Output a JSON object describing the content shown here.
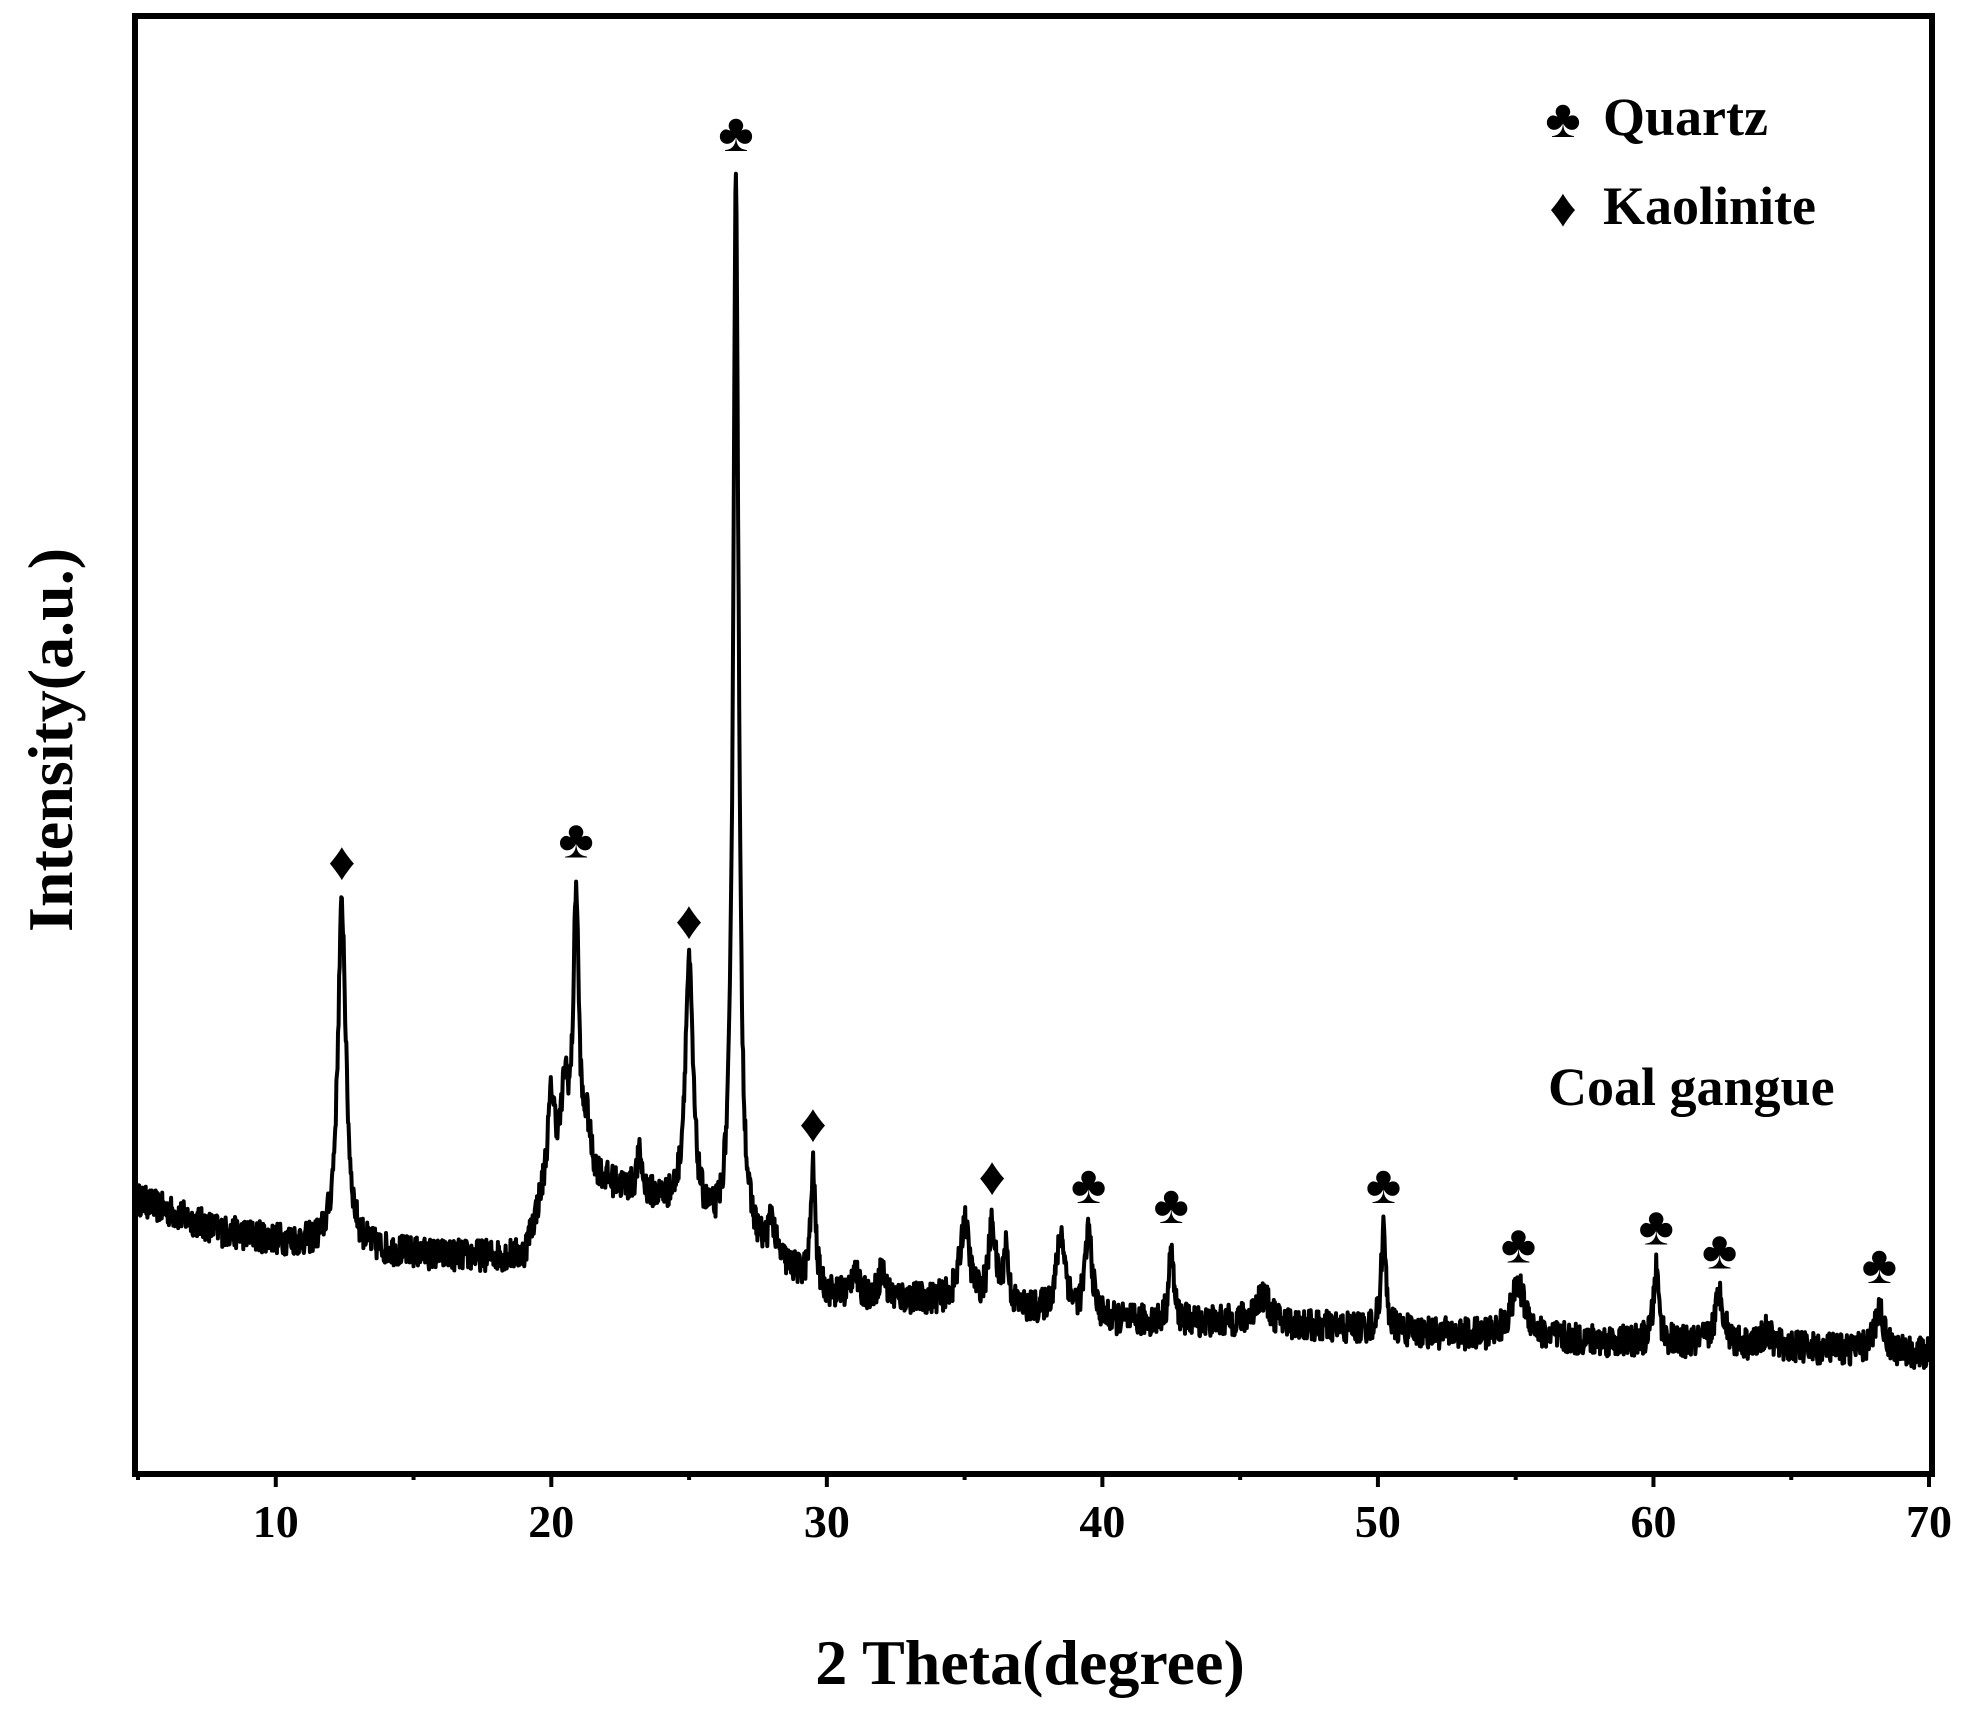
{
  "chart_data": {
    "type": "line",
    "title": "",
    "xlabel": "2 Theta(degree)",
    "ylabel": "Intensity(a.u.)",
    "xlim": [
      5,
      70
    ],
    "ylim": [
      0,
      100
    ],
    "grid": false,
    "y_ticks_labeled": false,
    "x_ticks": [
      10,
      20,
      30,
      40,
      50,
      60,
      70
    ],
    "legend": {
      "placement": "top-right",
      "entries": [
        {
          "symbol": "♣",
          "label": "Quartz"
        },
        {
          "symbol": "♦",
          "label": "Kaolinite"
        }
      ]
    },
    "series_annotation": "Coal gangue",
    "series": [
      {
        "name": "Coal gangue",
        "color": "#000000",
        "baseline": [
          [
            5,
            18.7
          ],
          [
            8,
            16.5
          ],
          [
            12,
            15.3
          ],
          [
            16,
            14.8
          ],
          [
            19,
            14.7
          ],
          [
            20,
            20.5
          ],
          [
            22,
            19.7
          ],
          [
            24,
            18.4
          ],
          [
            26,
            16.0
          ],
          [
            28,
            14.6
          ],
          [
            30,
            12.1
          ],
          [
            35,
            11.6
          ],
          [
            40,
            10.3
          ],
          [
            45,
            10.2
          ],
          [
            50,
            9.7
          ],
          [
            55,
            9.1
          ],
          [
            60,
            8.8
          ],
          [
            65,
            8.5
          ],
          [
            70,
            8.0
          ]
        ],
        "peaks": [
          [
            12.4,
            23.7,
            0.18
          ],
          [
            20.0,
            5.0,
            0.15
          ],
          [
            20.5,
            5.5,
            0.15
          ],
          [
            20.9,
            19.1,
            0.12
          ],
          [
            21.3,
            3.0,
            0.15
          ],
          [
            23.2,
            2.5,
            0.12
          ],
          [
            25.0,
            17.3,
            0.18
          ],
          [
            26.7,
            73.4,
            0.12
          ],
          [
            28.0,
            2.5,
            0.12
          ],
          [
            29.5,
            8.0,
            0.1
          ],
          [
            31.0,
            2.0,
            0.12
          ],
          [
            32.0,
            2.0,
            0.12
          ],
          [
            35.0,
            5.5,
            0.2
          ],
          [
            36.0,
            5.5,
            0.15
          ],
          [
            36.5,
            4.0,
            0.1
          ],
          [
            38.5,
            5.5,
            0.2
          ],
          [
            39.5,
            6.0,
            0.15
          ],
          [
            42.5,
            5.0,
            0.1
          ],
          [
            45.8,
            2.0,
            0.3
          ],
          [
            50.2,
            7.0,
            0.1
          ],
          [
            55.1,
            3.5,
            0.35
          ],
          [
            60.1,
            5.0,
            0.12
          ],
          [
            62.4,
            3.5,
            0.2
          ],
          [
            64.1,
            1.0,
            0.2
          ],
          [
            68.2,
            3.0,
            0.2
          ]
        ]
      }
    ],
    "peak_markers": [
      {
        "x": 12.4,
        "phase": "Kaolinite",
        "symbol": "♦"
      },
      {
        "x": 20.9,
        "phase": "Quartz",
        "symbol": "♣"
      },
      {
        "x": 25.0,
        "phase": "Kaolinite",
        "symbol": "♦"
      },
      {
        "x": 26.7,
        "phase": "Quartz",
        "symbol": "♣"
      },
      {
        "x": 29.5,
        "phase": "Kaolinite",
        "symbol": "♦"
      },
      {
        "x": 36.0,
        "phase": "Kaolinite",
        "symbol": "♦"
      },
      {
        "x": 39.5,
        "phase": "Quartz",
        "symbol": "♣"
      },
      {
        "x": 42.5,
        "phase": "Quartz",
        "symbol": "♣"
      },
      {
        "x": 50.2,
        "phase": "Quartz",
        "symbol": "♣"
      },
      {
        "x": 55.1,
        "phase": "Quartz",
        "symbol": "♣"
      },
      {
        "x": 60.1,
        "phase": "Quartz",
        "symbol": "♣"
      },
      {
        "x": 62.4,
        "phase": "Quartz",
        "symbol": "♣"
      },
      {
        "x": 68.2,
        "phase": "Quartz",
        "symbol": "♣"
      }
    ]
  }
}
